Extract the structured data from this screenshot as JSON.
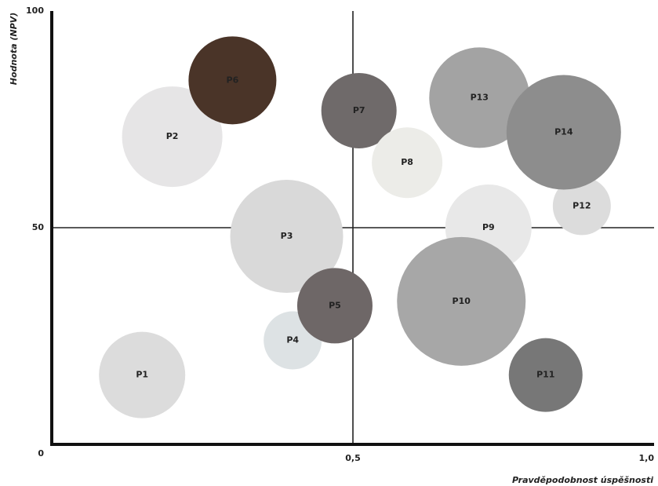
{
  "chart_data": {
    "type": "bubble",
    "x_label": "Pravděpodobnost úspěšnosti",
    "y_label": "Hodnota (NPV)",
    "labels": [
      "P1",
      "P2",
      "P3",
      "P4",
      "P5",
      "P6",
      "P7",
      "P8",
      "P9",
      "P10",
      "P11",
      "P12",
      "P13",
      "P14"
    ],
    "x": [
      0.15,
      0.2,
      0.39,
      0.4,
      0.47,
      0.3,
      0.51,
      0.59,
      0.725,
      0.68,
      0.82,
      0.88,
      0.71,
      0.85
    ],
    "values": [
      16,
      71,
      48,
      24,
      32,
      84,
      77,
      65,
      50,
      33,
      16,
      55,
      80,
      72
    ],
    "sizes": [
      55,
      64,
      72,
      37,
      48,
      56,
      48,
      45,
      55,
      82,
      47,
      37,
      64,
      73
    ],
    "colors": [
      "#dcdcdc",
      "#e6e5e6",
      "#d9d9d9",
      "#dde2e4",
      "#6e6767",
      "#4a3428",
      "#6f6a6a",
      "#ecece8",
      "#e8e8e8",
      "#a7a7a7",
      "#777777",
      "#dcdcdc",
      "#a3a3a3",
      "#8d8d8d"
    ],
    "xlim": [
      0,
      1
    ],
    "xticks": [
      {
        "value": 0.5,
        "label": "0,5"
      },
      {
        "value": 1,
        "label": "1,0"
      }
    ],
    "ylim": [
      0,
      100
    ],
    "yticks": [
      0,
      50,
      100
    ]
  }
}
